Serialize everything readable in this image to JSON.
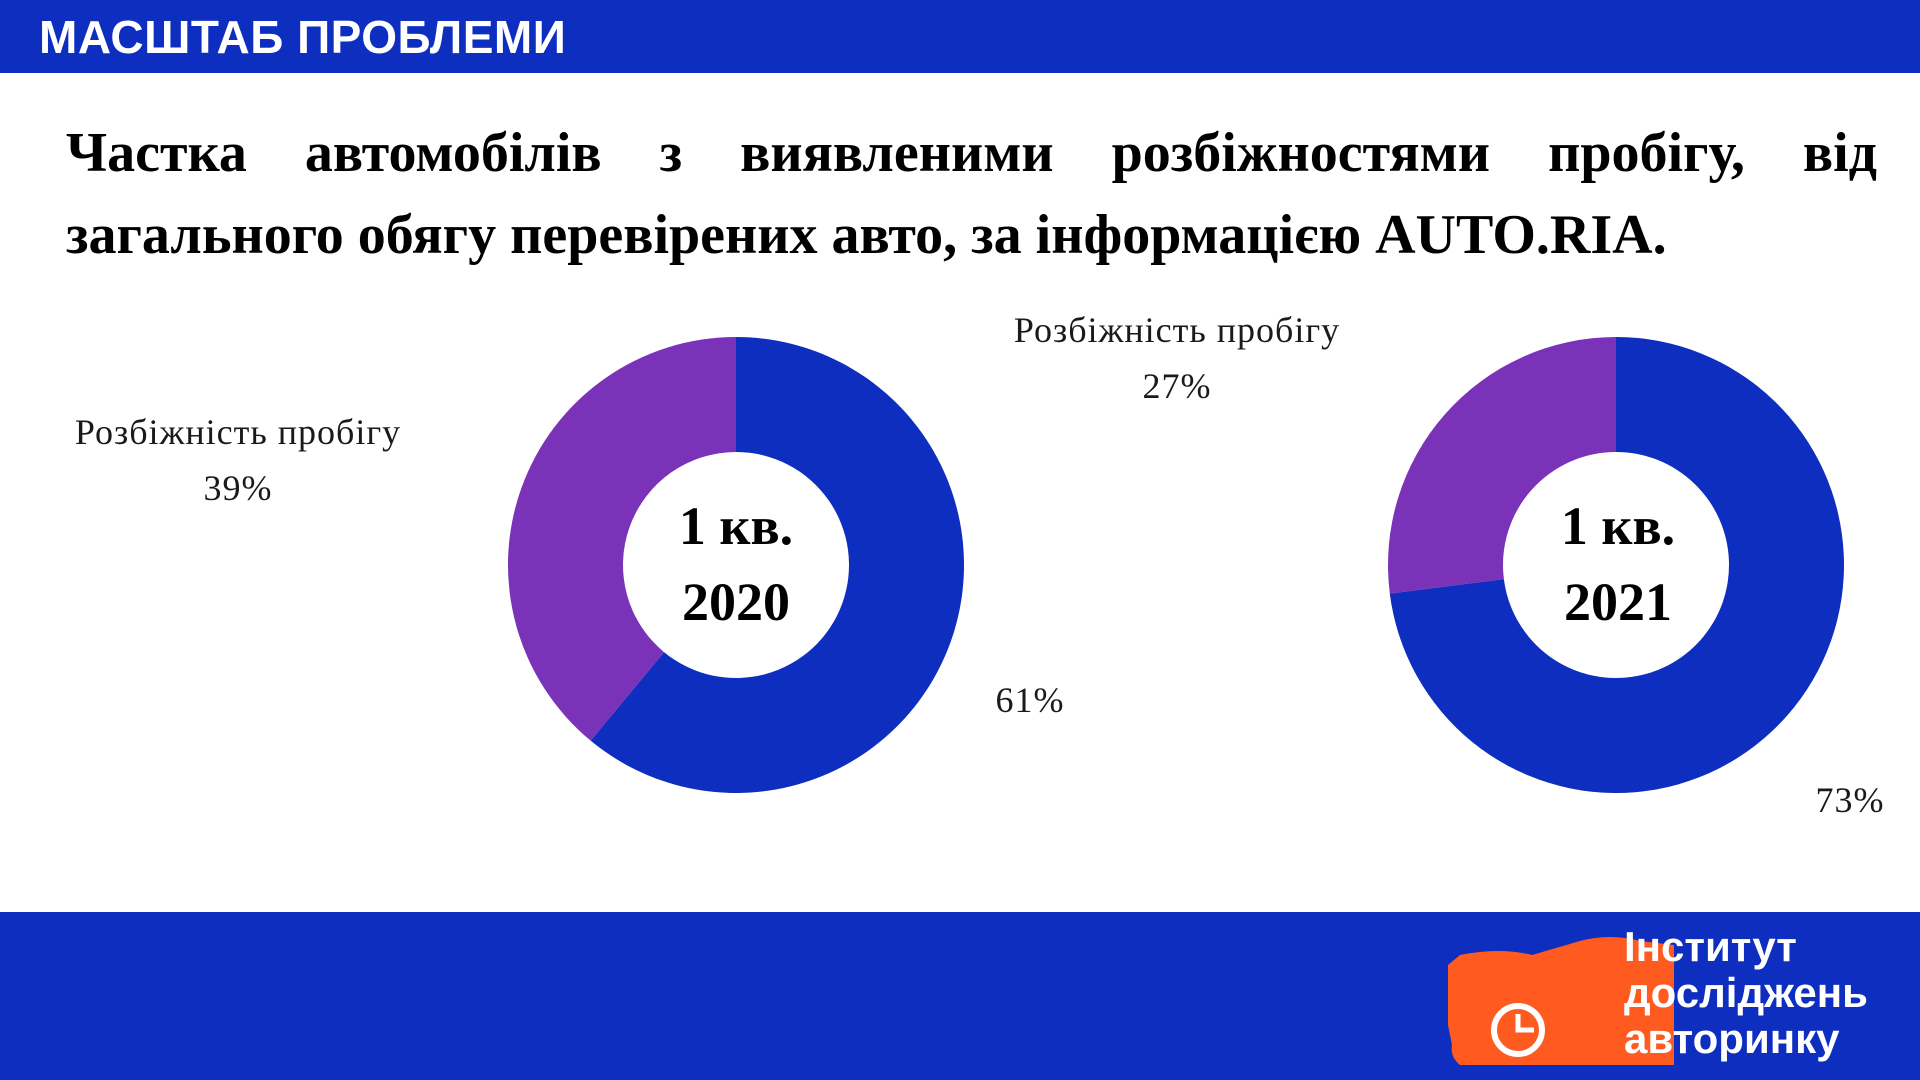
{
  "header": {
    "title": "МАСШТАБ ПРОБЛЕМИ"
  },
  "main": {
    "title": "Частка автомобілів з виявленими розбіжностями пробігу, від загального обягу перевірених авто, за інформацією AUTO.RIA."
  },
  "colors": {
    "brand_blue": "#0d2ebf",
    "slice_purple": "#7a32b9",
    "logo_orange": "#ff5a1f",
    "white": "#ffffff"
  },
  "chart_data": [
    {
      "type": "pie",
      "center_label_line1": "1 кв.",
      "center_label_line2": "2020",
      "slices": [
        {
          "name": "",
          "value": 61,
          "label": "61%",
          "color": "#0d2ebf"
        },
        {
          "name": "Розбіжність пробігу",
          "value": 39,
          "label": "39%",
          "color": "#7a32b9"
        }
      ]
    },
    {
      "type": "pie",
      "center_label_line1": "1 кв.",
      "center_label_line2": "2021",
      "slices": [
        {
          "name": "",
          "value": 73,
          "label": "73%",
          "color": "#0d2ebf"
        },
        {
          "name": "Розбіжність пробігу",
          "value": 27,
          "label": "27%",
          "color": "#7a32b9"
        }
      ]
    }
  ],
  "logo": {
    "line1": "Інститут",
    "line2": "досліджень",
    "line3": "авторинку",
    "icon": "pie-chart-icon"
  }
}
